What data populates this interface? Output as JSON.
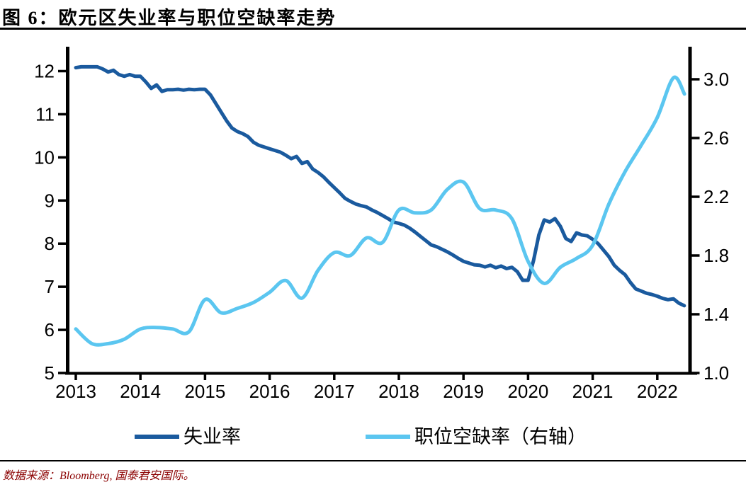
{
  "header": {
    "title": "图 6：欧元区失业率与职位空缺率走势"
  },
  "footer": {
    "source": "数据来源：Bloomberg, 国泰君安国际。"
  },
  "colors": {
    "unemployment_line": "#1A5A9E",
    "vacancy_line": "#5BC6F0",
    "axis": "#000000",
    "title_text": "#000000",
    "footer_text": "#8B0000"
  },
  "chart_data": {
    "type": "line",
    "title": "欧元区失业率与职位空缺率走势",
    "x_axis": {
      "tick_labels": [
        2013,
        2014,
        2015,
        2016,
        2017,
        2018,
        2019,
        2020,
        2021,
        2022
      ],
      "range": [
        2012.87,
        2022.51
      ]
    },
    "left_axis": {
      "tick_labels": [
        5,
        6,
        7,
        8,
        9,
        10,
        11,
        12
      ],
      "range": [
        5,
        12.55
      ]
    },
    "right_axis": {
      "tick_labels": [
        "1.0",
        "1.4",
        "1.8",
        "2.2",
        "2.6",
        "3.0"
      ],
      "range": [
        1.0,
        3.21
      ]
    },
    "legend_position": "bottom",
    "grid": false,
    "series": [
      {
        "name": "失业率",
        "axis": "left",
        "color": "#1A5A9E",
        "line_width": 5,
        "smooth": false,
        "start_x": 2013.0,
        "x_step_months": 1,
        "values": [
          12.08,
          12.1,
          12.1,
          12.1,
          12.1,
          12.05,
          11.98,
          12.02,
          11.92,
          11.88,
          11.92,
          11.88,
          11.88,
          11.75,
          11.6,
          11.68,
          11.53,
          11.57,
          11.57,
          11.58,
          11.56,
          11.58,
          11.57,
          11.58,
          11.58,
          11.45,
          11.25,
          11.05,
          10.85,
          10.68,
          10.6,
          10.55,
          10.48,
          10.35,
          10.28,
          10.24,
          10.2,
          10.16,
          10.12,
          10.05,
          9.97,
          10.02,
          9.86,
          9.9,
          9.73,
          9.65,
          9.55,
          9.42,
          9.3,
          9.18,
          9.05,
          8.98,
          8.92,
          8.88,
          8.85,
          8.78,
          8.72,
          8.65,
          8.58,
          8.5,
          8.47,
          8.43,
          8.36,
          8.27,
          8.17,
          8.07,
          7.97,
          7.93,
          7.87,
          7.81,
          7.74,
          7.66,
          7.59,
          7.55,
          7.51,
          7.5,
          7.46,
          7.5,
          7.44,
          7.48,
          7.42,
          7.45,
          7.35,
          7.15,
          7.15,
          7.6,
          8.2,
          8.55,
          8.5,
          8.58,
          8.4,
          8.12,
          8.05,
          8.25,
          8.2,
          8.18,
          8.1,
          8.0,
          7.85,
          7.7,
          7.5,
          7.38,
          7.28,
          7.1,
          6.95,
          6.9,
          6.85,
          6.82,
          6.78,
          6.73,
          6.7,
          6.72,
          6.62,
          6.56
        ]
      },
      {
        "name": "职位空缺率（右轴）",
        "axis": "right",
        "color": "#5BC6F0",
        "line_width": 5,
        "smooth": true,
        "start_x": 2013.0,
        "x_step_months": 3,
        "end_x": 2022.42,
        "values": [
          1.3,
          1.2,
          1.2,
          1.23,
          1.3,
          1.31,
          1.3,
          1.28,
          1.5,
          1.41,
          1.44,
          1.48,
          1.55,
          1.63,
          1.51,
          1.7,
          1.82,
          1.8,
          1.92,
          1.89,
          2.11,
          2.09,
          2.11,
          2.25,
          2.3,
          2.12,
          2.11,
          2.05,
          1.76,
          1.61,
          1.72,
          1.78,
          1.87,
          2.15,
          2.37,
          2.55,
          2.74,
          3.01,
          2.9
        ]
      }
    ]
  }
}
